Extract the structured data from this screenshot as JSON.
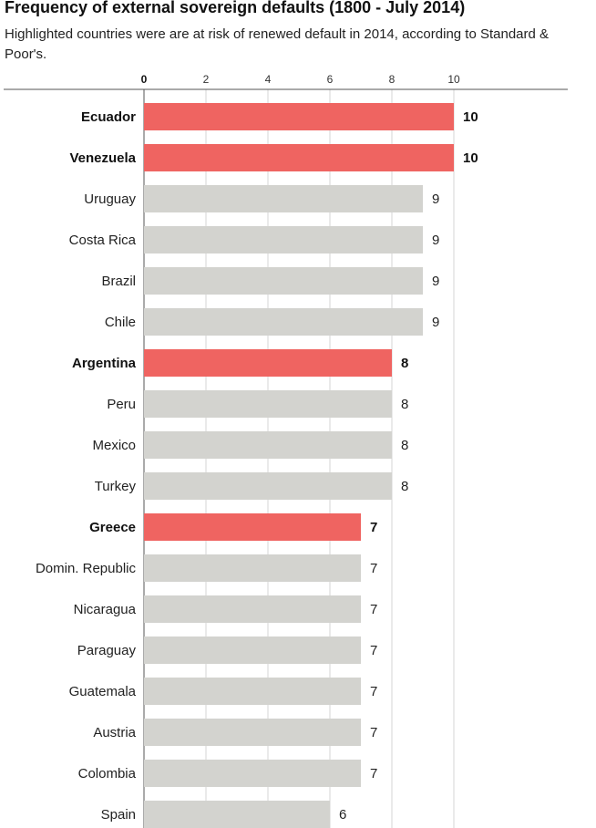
{
  "colors": {
    "highlight": "#ef6461",
    "default": "#d3d3cf",
    "grid": "#d4d4d4",
    "axis": "#555555"
  },
  "chart_data": {
    "type": "bar",
    "orientation": "horizontal",
    "title": "Frequency of external sovereign defaults (1800 - July 2014)",
    "subtitle": "Highlighted countries were are at risk of renewed default in 2014, according to Standard & Poor's.",
    "x_ticks": [
      "0",
      "2",
      "4",
      "6",
      "8",
      "10"
    ],
    "xlim": [
      0,
      10
    ],
    "grid": true,
    "categories": [
      "Ecuador",
      "Venezuela",
      "Uruguay",
      "Costa Rica",
      "Brazil",
      "Chile",
      "Argentina",
      "Peru",
      "Mexico",
      "Turkey",
      "Greece",
      "Domin. Republic",
      "Nicaragua",
      "Paraguay",
      "Guatemala",
      "Austria",
      "Colombia",
      "Spain"
    ],
    "values": [
      10,
      10,
      9,
      9,
      9,
      9,
      8,
      8,
      8,
      8,
      7,
      7,
      7,
      7,
      7,
      7,
      7,
      6
    ],
    "highlighted": [
      true,
      true,
      false,
      false,
      false,
      false,
      true,
      false,
      false,
      false,
      true,
      false,
      false,
      false,
      false,
      false,
      false,
      false
    ]
  }
}
